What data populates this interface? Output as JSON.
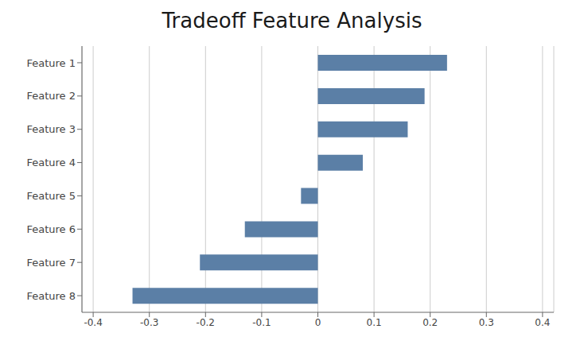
{
  "chart_data": {
    "type": "bar",
    "title": "Tradeoff Feature Analysis",
    "orientation": "horizontal",
    "categories": [
      "Feature 1",
      "Feature 2",
      "Feature 3",
      "Feature 4",
      "Feature 5",
      "Feature 6",
      "Feature 7",
      "Feature 8"
    ],
    "values": [
      0.23,
      0.19,
      0.16,
      0.08,
      -0.03,
      -0.13,
      -0.21,
      -0.33
    ],
    "color": "#5b7fa6",
    "xlim": [
      -0.42,
      0.42
    ],
    "xticks": [
      -0.4,
      -0.3,
      -0.2,
      -0.1,
      0,
      0.1,
      0.2,
      0.3,
      0.4
    ],
    "grid": true
  }
}
